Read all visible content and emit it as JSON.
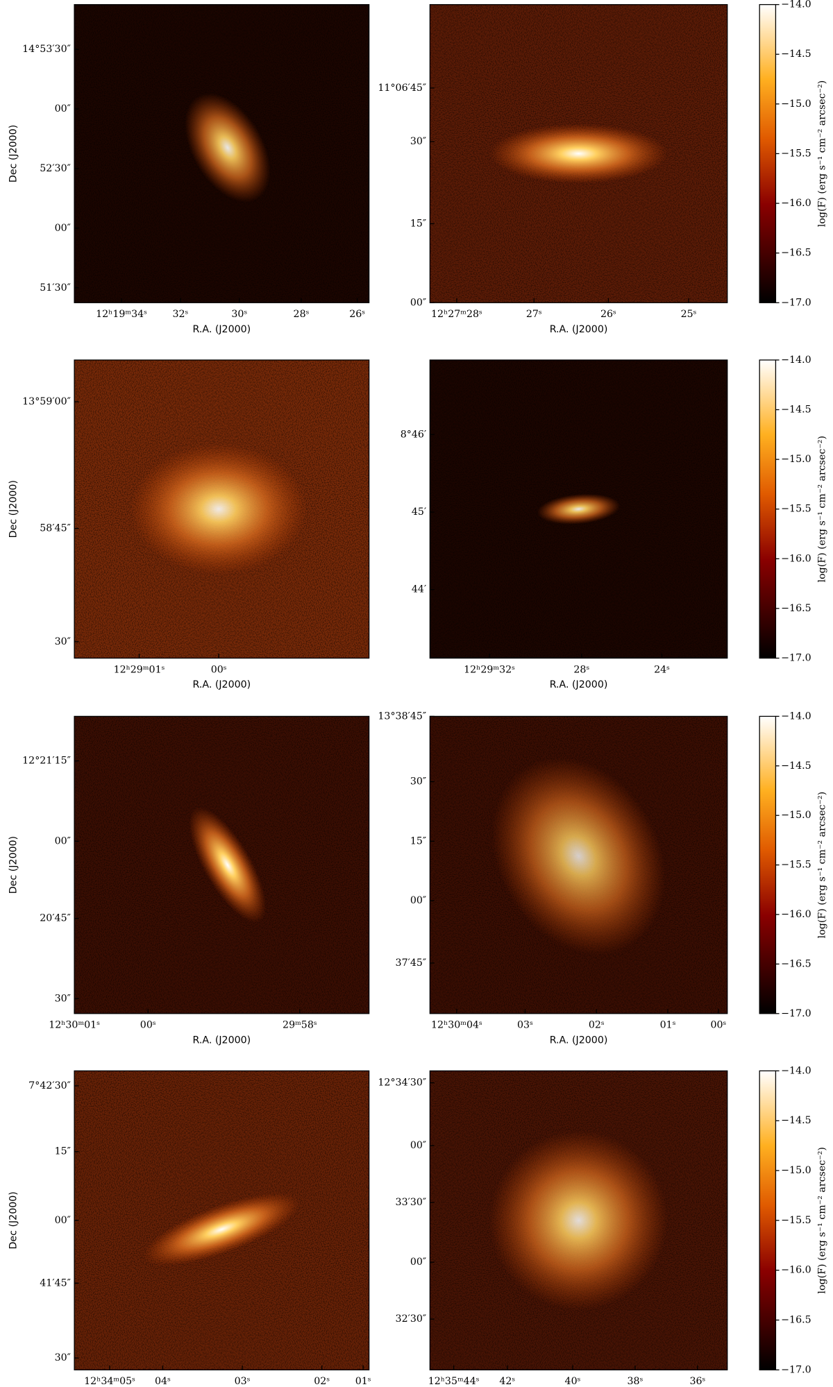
{
  "chart_data": [
    {
      "type": "image",
      "x_label": "R.A. (J2000)",
      "y_label": "Dec (J2000)",
      "x_tick_labels": [
        "12ʰ19ᵐ34ˢ",
        "32ˢ",
        "30ˢ",
        "28ˢ",
        "26ˢ"
      ],
      "y_tick_labels": [
        "14°53′30″",
        "00″",
        "52′30″",
        "00″",
        "51′30″"
      ]
    },
    {
      "type": "image",
      "x_label": "R.A. (J2000)",
      "x_tick_labels": [
        "12ʰ27ᵐ28ˢ",
        "27ˢ",
        "26ˢ",
        "25ˢ"
      ],
      "y_tick_labels": [
        "11°06′45″",
        "30″",
        "15″",
        "00″"
      ]
    },
    {
      "type": "colorbar",
      "label": "log(F) (erg s⁻¹ cm⁻² arcsec⁻²)",
      "ylim": [
        -17,
        -14
      ],
      "yticks": [
        {
          "value": -14,
          "label": "−14.0"
        },
        {
          "value": -14.5,
          "label": "−14.5"
        },
        {
          "value": -15,
          "label": "−15.0"
        },
        {
          "value": -15.5,
          "label": "−15.5"
        },
        {
          "value": -16,
          "label": "−16.0"
        },
        {
          "value": -16.5,
          "label": "−16.5"
        },
        {
          "value": -17,
          "label": "−17.0"
        }
      ]
    },
    {
      "type": "image",
      "x_label": "R.A. (J2000)",
      "y_label": "Dec (J2000)",
      "x_tick_labels": [
        "12ʰ29ᵐ01ˢ",
        "00ˢ"
      ],
      "y_tick_labels": [
        "13°59′00″",
        "58′45″",
        "30″"
      ]
    },
    {
      "type": "image",
      "x_label": "R.A. (J2000)",
      "x_tick_labels": [
        "12ʰ29ᵐ32ˢ",
        "28ˢ",
        "24ˢ"
      ],
      "y_tick_labels": [
        "8°46′",
        "45′",
        "44′"
      ]
    },
    {
      "type": "colorbar",
      "label": "log(F) (erg s⁻¹ cm⁻² arcsec⁻²)",
      "ylim": [
        -17,
        -14
      ],
      "yticks": [
        {
          "value": -14,
          "label": "−14.0"
        },
        {
          "value": -14.5,
          "label": "−14.5"
        },
        {
          "value": -15,
          "label": "−15.0"
        },
        {
          "value": -15.5,
          "label": "−15.5"
        },
        {
          "value": -16,
          "label": "−16.0"
        },
        {
          "value": -16.5,
          "label": "−16.5"
        },
        {
          "value": -17,
          "label": "−17.0"
        }
      ]
    },
    {
      "type": "image",
      "x_label": "R.A. (J2000)",
      "y_label": "Dec (J2000)",
      "x_tick_labels": [
        "12ʰ30ᵐ01ˢ",
        "00ˢ",
        "29ᵐ58ˢ"
      ],
      "y_tick_labels": [
        "12°21′15″",
        "00″",
        "20′45″",
        "30″"
      ]
    },
    {
      "type": "image",
      "x_label": "R.A. (J2000)",
      "x_tick_labels": [
        "12ʰ30ᵐ04ˢ",
        "03ˢ",
        "02ˢ",
        "01ˢ",
        "00ˢ"
      ],
      "y_tick_labels": [
        "13°38′45″",
        "30″",
        "15″",
        "00″",
        "37′45″"
      ]
    },
    {
      "type": "colorbar",
      "label": "log(F) (erg s⁻¹ cm⁻² arcsec⁻²)",
      "ylim": [
        -17,
        -14
      ],
      "yticks": [
        {
          "value": -14,
          "label": "−14.0"
        },
        {
          "value": -14.5,
          "label": "−14.5"
        },
        {
          "value": -15,
          "label": "−15.0"
        },
        {
          "value": -15.5,
          "label": "−15.5"
        },
        {
          "value": -16,
          "label": "−16.0"
        },
        {
          "value": -16.5,
          "label": "−16.5"
        },
        {
          "value": -17,
          "label": "−17.0"
        }
      ]
    },
    {
      "type": "image",
      "x_label": "R.A. (J2000)",
      "y_label": "Dec (J2000)",
      "x_tick_labels": [
        "12ʰ34ᵐ05ˢ",
        "04ˢ",
        "03ˢ",
        "02ˢ",
        "01ˢ"
      ],
      "y_tick_labels": [
        "7°42′30″",
        "15″",
        "00″",
        "41′45″",
        "30″"
      ]
    },
    {
      "type": "image",
      "x_label": "R.A. (J2000)",
      "x_tick_labels": [
        "12ʰ35ᵐ44ˢ",
        "42ˢ",
        "40ˢ",
        "38ˢ",
        "36ˢ"
      ],
      "y_tick_labels": [
        "12°34′30″",
        "00″",
        "33′30″",
        "00″",
        "32′30″"
      ]
    },
    {
      "type": "colorbar",
      "label": "log(F) (erg s⁻¹ cm⁻² arcsec⁻²)",
      "ylim": [
        -17,
        -14
      ],
      "yticks": [
        {
          "value": -14,
          "label": "−14.0"
        },
        {
          "value": -14.5,
          "label": "−14.5"
        },
        {
          "value": -15,
          "label": "−15.0"
        },
        {
          "value": -15.5,
          "label": "−15.5"
        },
        {
          "value": -16,
          "label": "−16.0"
        },
        {
          "value": -16.5,
          "label": "−16.5"
        },
        {
          "value": -17,
          "label": "−17.0"
        }
      ]
    }
  ]
}
